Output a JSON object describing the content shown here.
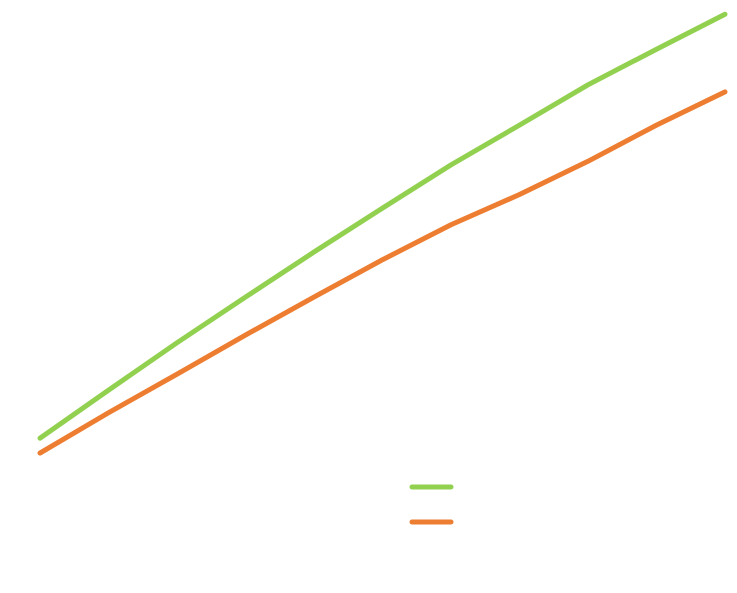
{
  "chart_data": {
    "type": "line",
    "x": [
      0,
      1,
      2,
      3,
      4,
      5,
      6,
      7,
      8,
      9,
      10
    ],
    "xlim": [
      0,
      10
    ],
    "ylim": [
      0,
      100
    ],
    "series": [
      {
        "color": "#92d050",
        "values": [
          26.1,
          34.2,
          42.2,
          49.9,
          57.5,
          64.9,
          72.2,
          78.9,
          85.7,
          91.7,
          97.6
        ]
      },
      {
        "color": "#ed7d31",
        "values": [
          23.6,
          30.4,
          36.9,
          43.5,
          49.9,
          56.2,
          62.1,
          67.2,
          72.8,
          78.9,
          84.5
        ]
      }
    ]
  }
}
